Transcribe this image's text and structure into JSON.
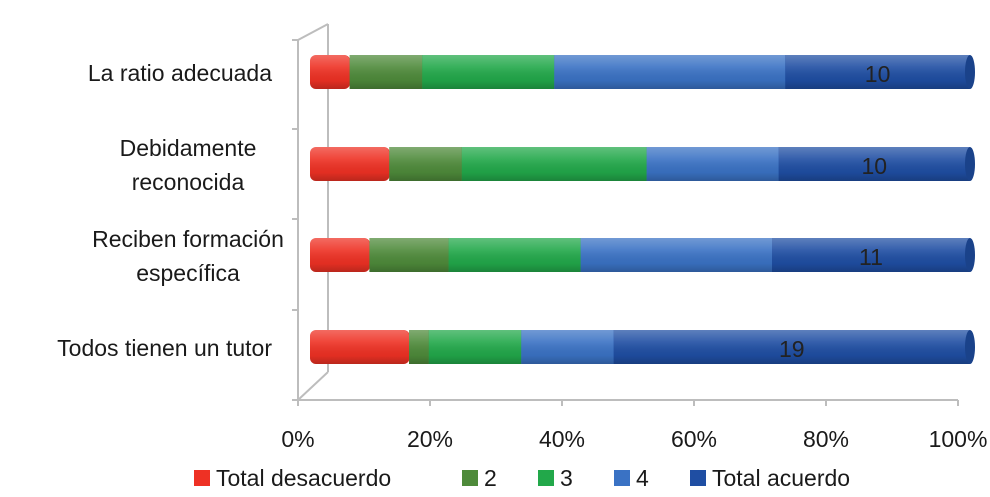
{
  "chart_data": {
    "type": "bar",
    "orientation": "horizontal",
    "stacked": "percent",
    "three_d": true,
    "categories": [
      "La ratio adecuada",
      "Debidamente reconocida",
      "Reciben formación específica",
      "Todos tienen un tutor"
    ],
    "category_label_lines": [
      [
        "La ratio adecuada"
      ],
      [
        "Debidamente",
        "reconocida"
      ],
      [
        "Reciben formación",
        "específica"
      ],
      [
        "Todos tienen un tutor"
      ]
    ],
    "series": [
      {
        "name": "Total desacuerdo",
        "color": "#ee3124",
        "values": [
          6,
          12,
          9,
          15
        ]
      },
      {
        "name": "2",
        "color": "#4e8a3a",
        "values": [
          11,
          11,
          12,
          3
        ]
      },
      {
        "name": "3",
        "color": "#22a84a",
        "values": [
          20,
          28,
          20,
          14
        ]
      },
      {
        "name": "4",
        "color": "#3a72c4",
        "values": [
          35,
          20,
          29,
          14
        ]
      },
      {
        "name": "Total acuerdo",
        "color": "#1f4ea3",
        "values": [
          28,
          29,
          30,
          54
        ]
      }
    ],
    "data_labels": [
      {
        "category": "La ratio adecuada",
        "series": "Total acuerdo",
        "text": "10"
      },
      {
        "category": "Debidamente reconocida",
        "series": "Total acuerdo",
        "text": "10"
      },
      {
        "category": "Reciben formación específica",
        "series": "Total acuerdo",
        "text": "11"
      },
      {
        "category": "Todos tienen un tutor",
        "series": "Total acuerdo",
        "text": "19"
      }
    ],
    "x_ticks": [
      "0%",
      "20%",
      "40%",
      "60%",
      "80%",
      "100%"
    ],
    "xlim": [
      0,
      100
    ],
    "grid": false,
    "legend": {
      "position": "bottom"
    }
  }
}
